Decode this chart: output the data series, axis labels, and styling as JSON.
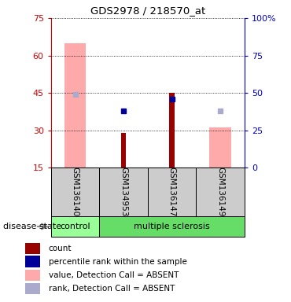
{
  "title": "GDS2978 / 218570_at",
  "samples": [
    "GSM136140",
    "GSM134953",
    "GSM136147",
    "GSM136149"
  ],
  "left_axis": {
    "color": "#cc0000",
    "ticks": [
      15,
      30,
      45,
      60,
      75
    ],
    "ylim": [
      15,
      75
    ]
  },
  "right_axis": {
    "color": "#0000cc",
    "ticks": [
      0,
      25,
      50,
      75,
      100
    ],
    "tick_labels": [
      "0",
      "25",
      "50",
      "75",
      "100%"
    ],
    "ylim": [
      0,
      100
    ]
  },
  "count_bars": {
    "GSM136140": null,
    "GSM134953": 29,
    "GSM136147": 45,
    "GSM136149": null
  },
  "value_bars_absent": {
    "GSM136140": 65,
    "GSM134953": null,
    "GSM136147": null,
    "GSM136149": 31
  },
  "percentile_rank_points": {
    "GSM136140": null,
    "GSM134953": 38,
    "GSM136147": 46,
    "GSM136149": null
  },
  "rank_absent_points": {
    "GSM136140": 49,
    "GSM134953": null,
    "GSM136147": null,
    "GSM136149": 38
  },
  "colors": {
    "count_bar": "#990000",
    "value_absent_bar": "#ffaaaa",
    "percentile_rank_point": "#000099",
    "rank_absent_point": "#aaaacc",
    "left_tick_color": "#cc0000",
    "right_tick_color": "#0000cc",
    "sample_bg": "#cccccc",
    "control_bg": "#99ff99",
    "ms_bg": "#66dd66"
  },
  "legend_labels": [
    "count",
    "percentile rank within the sample",
    "value, Detection Call = ABSENT",
    "rank, Detection Call = ABSENT"
  ],
  "legend_colors": [
    "#990000",
    "#000099",
    "#ffaaaa",
    "#aaaacc"
  ],
  "figsize": [
    3.7,
    3.84
  ],
  "dpi": 100
}
